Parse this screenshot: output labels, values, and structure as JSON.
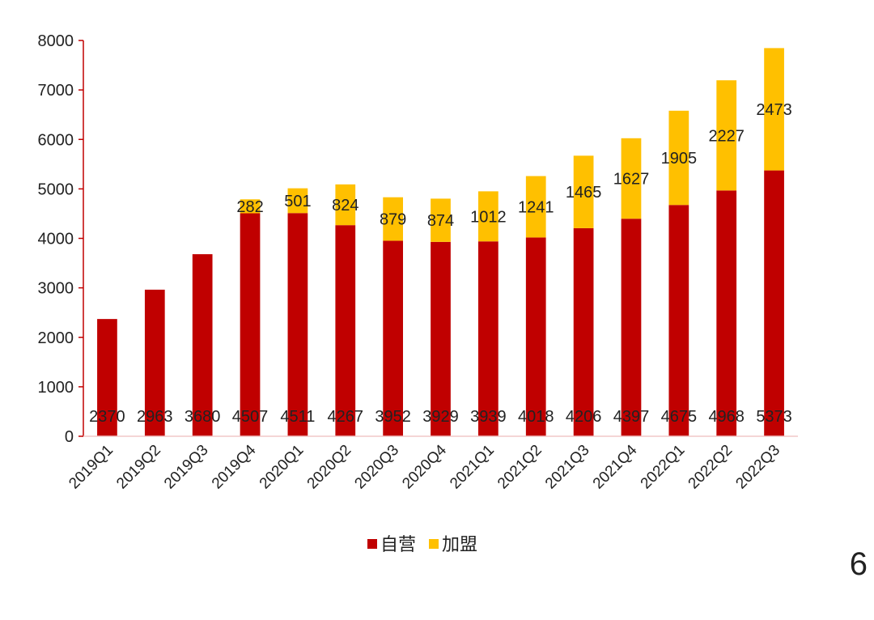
{
  "page_number": "6",
  "chart_data": {
    "type": "bar",
    "stacked": true,
    "title": "",
    "xlabel": "",
    "ylabel": "",
    "ylim": [
      0,
      8000
    ],
    "yticks": [
      0,
      1000,
      2000,
      3000,
      4000,
      5000,
      6000,
      7000,
      8000
    ],
    "categories": [
      "2019Q1",
      "2019Q2",
      "2019Q3",
      "2019Q4",
      "2020Q1",
      "2020Q2",
      "2020Q3",
      "2020Q4",
      "2021Q1",
      "2021Q2",
      "2021Q3",
      "2021Q4",
      "2022Q1",
      "2022Q2",
      "2022Q3"
    ],
    "series": [
      {
        "name": "自营",
        "color": "#C00000",
        "values": [
          2370,
          2963,
          3680,
          4507,
          4511,
          4267,
          3952,
          3929,
          3939,
          4018,
          4206,
          4397,
          4675,
          4968,
          5373
        ]
      },
      {
        "name": "加盟",
        "color": "#FFC000",
        "values": [
          null,
          null,
          null,
          282,
          501,
          824,
          879,
          874,
          1012,
          1241,
          1465,
          1627,
          1905,
          2227,
          2473
        ]
      }
    ],
    "legend_position": "bottom"
  }
}
